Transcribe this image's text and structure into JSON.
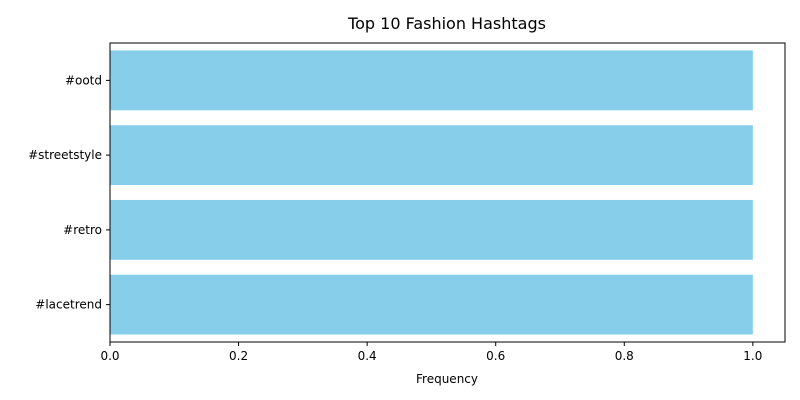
{
  "chart_data": {
    "type": "bar",
    "orientation": "horizontal",
    "title": "Top 10 Fashion Hashtags",
    "xlabel": "Frequency",
    "ylabel": "",
    "categories": [
      "#ootd",
      "#streetstyle",
      "#retro",
      "#lacetrend"
    ],
    "values": [
      1,
      1,
      1,
      1
    ],
    "xlim": [
      0,
      1.05
    ],
    "xticks": [
      0.0,
      0.2,
      0.4,
      0.6,
      0.8,
      1.0
    ],
    "xtick_labels": [
      "0.0",
      "0.2",
      "0.4",
      "0.6",
      "0.8",
      "1.0"
    ],
    "bar_color": "#87ceeb",
    "grid": false,
    "legend": "none"
  }
}
